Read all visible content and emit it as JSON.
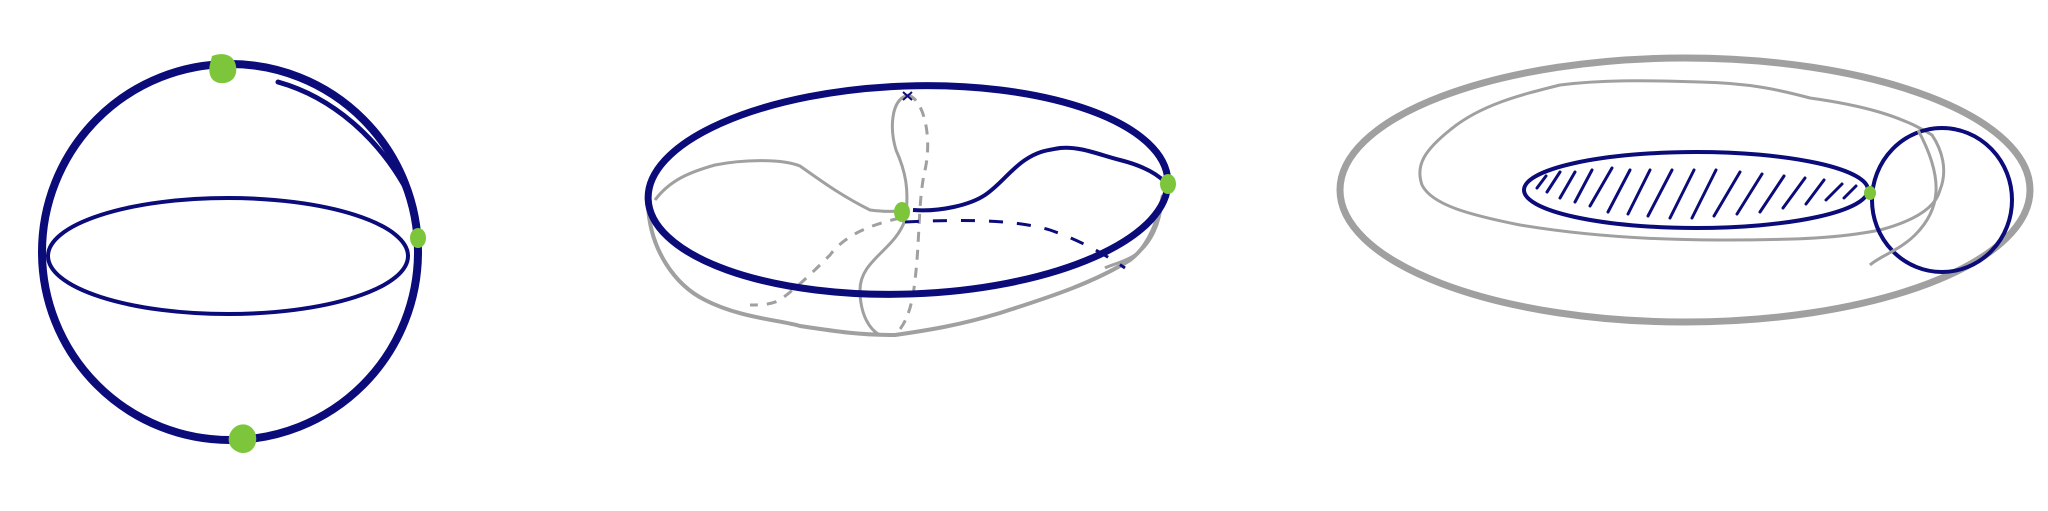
{
  "colors": {
    "background": "#ffffff",
    "curve_blue": "#0b0b7a",
    "curve_gray": "#a0a0a0",
    "marker_green": "#7dc63b"
  },
  "figures": [
    {
      "name": "sphere-figure",
      "markers": 3
    },
    {
      "name": "saddle-figure",
      "markers": 2
    },
    {
      "name": "torus-figure",
      "markers": 1,
      "hatched_disk": true
    }
  ]
}
